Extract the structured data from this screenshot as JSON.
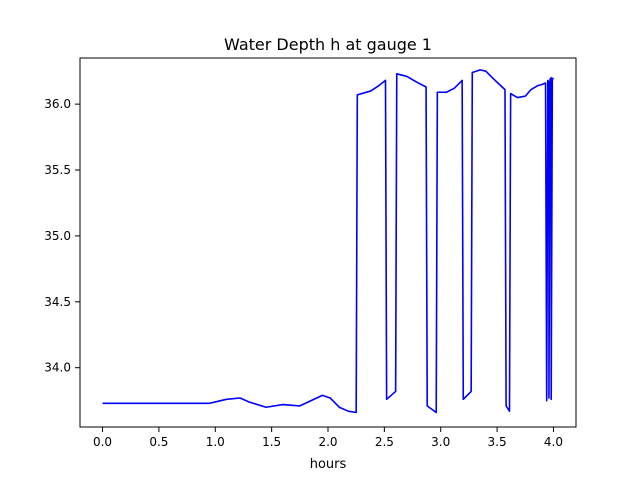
{
  "chart_data": {
    "type": "line",
    "title": "Water Depth h at gauge 1",
    "xlabel": "hours",
    "ylabel": "",
    "xlim": [
      -0.2,
      4.2
    ],
    "ylim": [
      33.55,
      36.35
    ],
    "grid": false,
    "legend": "none",
    "x_ticks": [
      0.0,
      0.5,
      1.0,
      1.5,
      2.0,
      2.5,
      3.0,
      3.5,
      4.0
    ],
    "x_tick_labels": [
      "0.0",
      "0.5",
      "1.0",
      "1.5",
      "2.0",
      "2.5",
      "3.0",
      "3.5",
      "4.0"
    ],
    "y_ticks": [
      34.0,
      34.5,
      35.0,
      35.5,
      36.0
    ],
    "y_tick_labels": [
      "34.0",
      "34.5",
      "35.0",
      "35.5",
      "36.0"
    ],
    "series": [
      {
        "color": "#0000ff",
        "x": [
          0.0,
          0.5,
          0.95,
          1.0,
          1.1,
          1.22,
          1.3,
          1.45,
          1.6,
          1.75,
          1.85,
          1.95,
          2.02,
          2.1,
          2.18,
          2.25,
          2.26,
          2.3,
          2.38,
          2.45,
          2.51,
          2.52,
          2.6,
          2.61,
          2.7,
          2.78,
          2.87,
          2.88,
          2.96,
          2.97,
          3.05,
          3.12,
          3.19,
          3.2,
          3.27,
          3.28,
          3.35,
          3.4,
          3.47,
          3.52,
          3.57,
          3.58,
          3.61,
          3.62,
          3.68,
          3.75,
          3.8,
          3.86,
          3.9,
          3.93,
          3.94,
          3.95,
          3.96,
          3.96,
          3.97,
          3.98,
          3.98,
          3.99,
          4.0
        ],
        "values": [
          33.73,
          33.73,
          33.73,
          33.74,
          33.76,
          33.77,
          33.74,
          33.7,
          33.72,
          33.71,
          33.75,
          33.79,
          33.77,
          33.7,
          33.67,
          33.66,
          36.07,
          36.08,
          36.1,
          36.14,
          36.18,
          33.76,
          33.82,
          36.23,
          36.21,
          36.17,
          36.13,
          33.71,
          33.66,
          36.09,
          36.09,
          36.12,
          36.18,
          33.76,
          33.82,
          36.24,
          36.26,
          36.25,
          36.19,
          36.15,
          36.11,
          33.71,
          33.67,
          36.08,
          36.05,
          36.06,
          36.11,
          36.14,
          36.15,
          36.16,
          33.75,
          36.18,
          36.17,
          33.77,
          36.19,
          36.2,
          33.76,
          36.19,
          36.2
        ]
      }
    ]
  }
}
